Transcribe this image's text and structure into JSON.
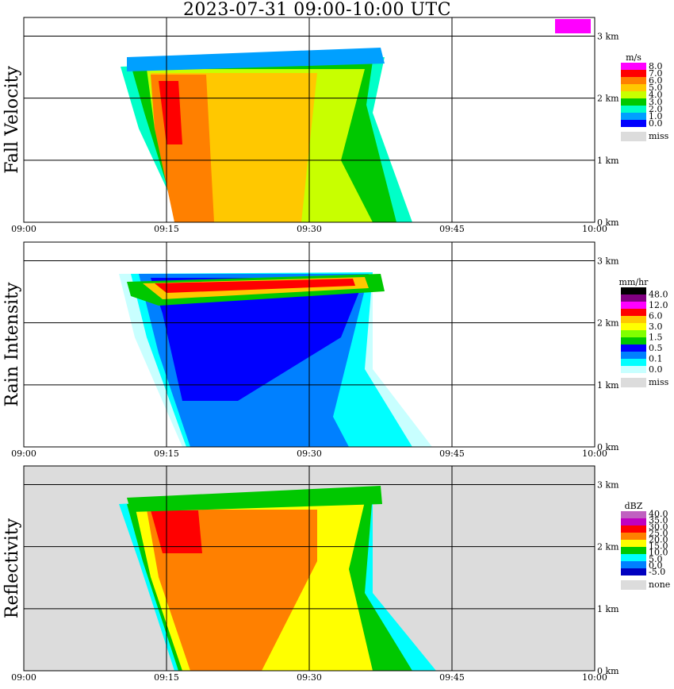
{
  "title": "2023-07-31   09:00-10:00 UTC",
  "panels": [
    {
      "label": "Fall Velocity",
      "unit": "m/s",
      "legend": [
        "8.0",
        "7.0",
        "6.0",
        "5.0",
        "4.0",
        "3.0",
        "2.0",
        "1.0",
        "0.0"
      ],
      "miss": "miss",
      "colors": [
        "#ff00ff",
        "#ff0000",
        "#ff8000",
        "#ffc800",
        "#c8ff00",
        "#00c800",
        "#00ffc8",
        "#00a0ff",
        "#0000ff",
        "#dcdcdc"
      ]
    },
    {
      "label": "Rain Intensity",
      "unit": "mm/hr",
      "legend": [
        "48.0",
        "12.0",
        "6.0",
        "3.0",
        "1.5",
        "0.5",
        "0.1",
        "0.0"
      ],
      "miss": "miss",
      "colors": [
        "#000000",
        "#800080",
        "#ff00ff",
        "#ff0000",
        "#ffc800",
        "#ffff00",
        "#80ff00",
        "#00c800",
        "#0000ff",
        "#0080ff",
        "#00ffff",
        "#c8ffff",
        "#dcdcdc"
      ]
    },
    {
      "label": "Reflectivity",
      "unit": "dBZ",
      "legend": [
        "40.0",
        "35.0",
        "30.0",
        "25.0",
        "20.0",
        "15.0",
        "10.0",
        "5.0",
        "0.0",
        "-5.0"
      ],
      "miss": "none",
      "colors": [
        "#c060c0",
        "#c000c0",
        "#ff0000",
        "#ff8000",
        "#ffff00",
        "#00c800",
        "#00ffff",
        "#0080ff",
        "#0000c0",
        "#dcdcdc"
      ]
    }
  ],
  "x_ticks": [
    "09:00",
    "09:15",
    "09:30",
    "09:45",
    "10:00"
  ],
  "y_ticks": [
    "0 km",
    "1 km",
    "2 km",
    "3 km"
  ],
  "chart_data": {
    "type": "heatmap",
    "title": "2023-07-31   09:00-10:00 UTC",
    "x": [
      "09:00",
      "09:15",
      "09:30",
      "09:45",
      "10:00"
    ],
    "y": [
      "0 km",
      "1 km",
      "2 km",
      "3 km"
    ],
    "xlim": [
      "09:00",
      "10:00"
    ],
    "ylim": [
      0,
      3.3
    ],
    "series": [
      {
        "name": "Fall Velocity",
        "unit": "m/s",
        "colorbar": [
          0.0,
          1.0,
          2.0,
          3.0,
          4.0,
          5.0,
          6.0,
          7.0,
          8.0
        ]
      },
      {
        "name": "Rain Intensity",
        "unit": "mm/hr",
        "colorbar": [
          0.0,
          0.1,
          0.5,
          1.5,
          3.0,
          6.0,
          12.0,
          48.0
        ]
      },
      {
        "name": "Reflectivity",
        "unit": "dBZ",
        "colorbar": [
          -5.0,
          0.0,
          5.0,
          10.0,
          15.0,
          20.0,
          25.0,
          30.0,
          35.0,
          40.0
        ]
      }
    ],
    "grid": true
  }
}
